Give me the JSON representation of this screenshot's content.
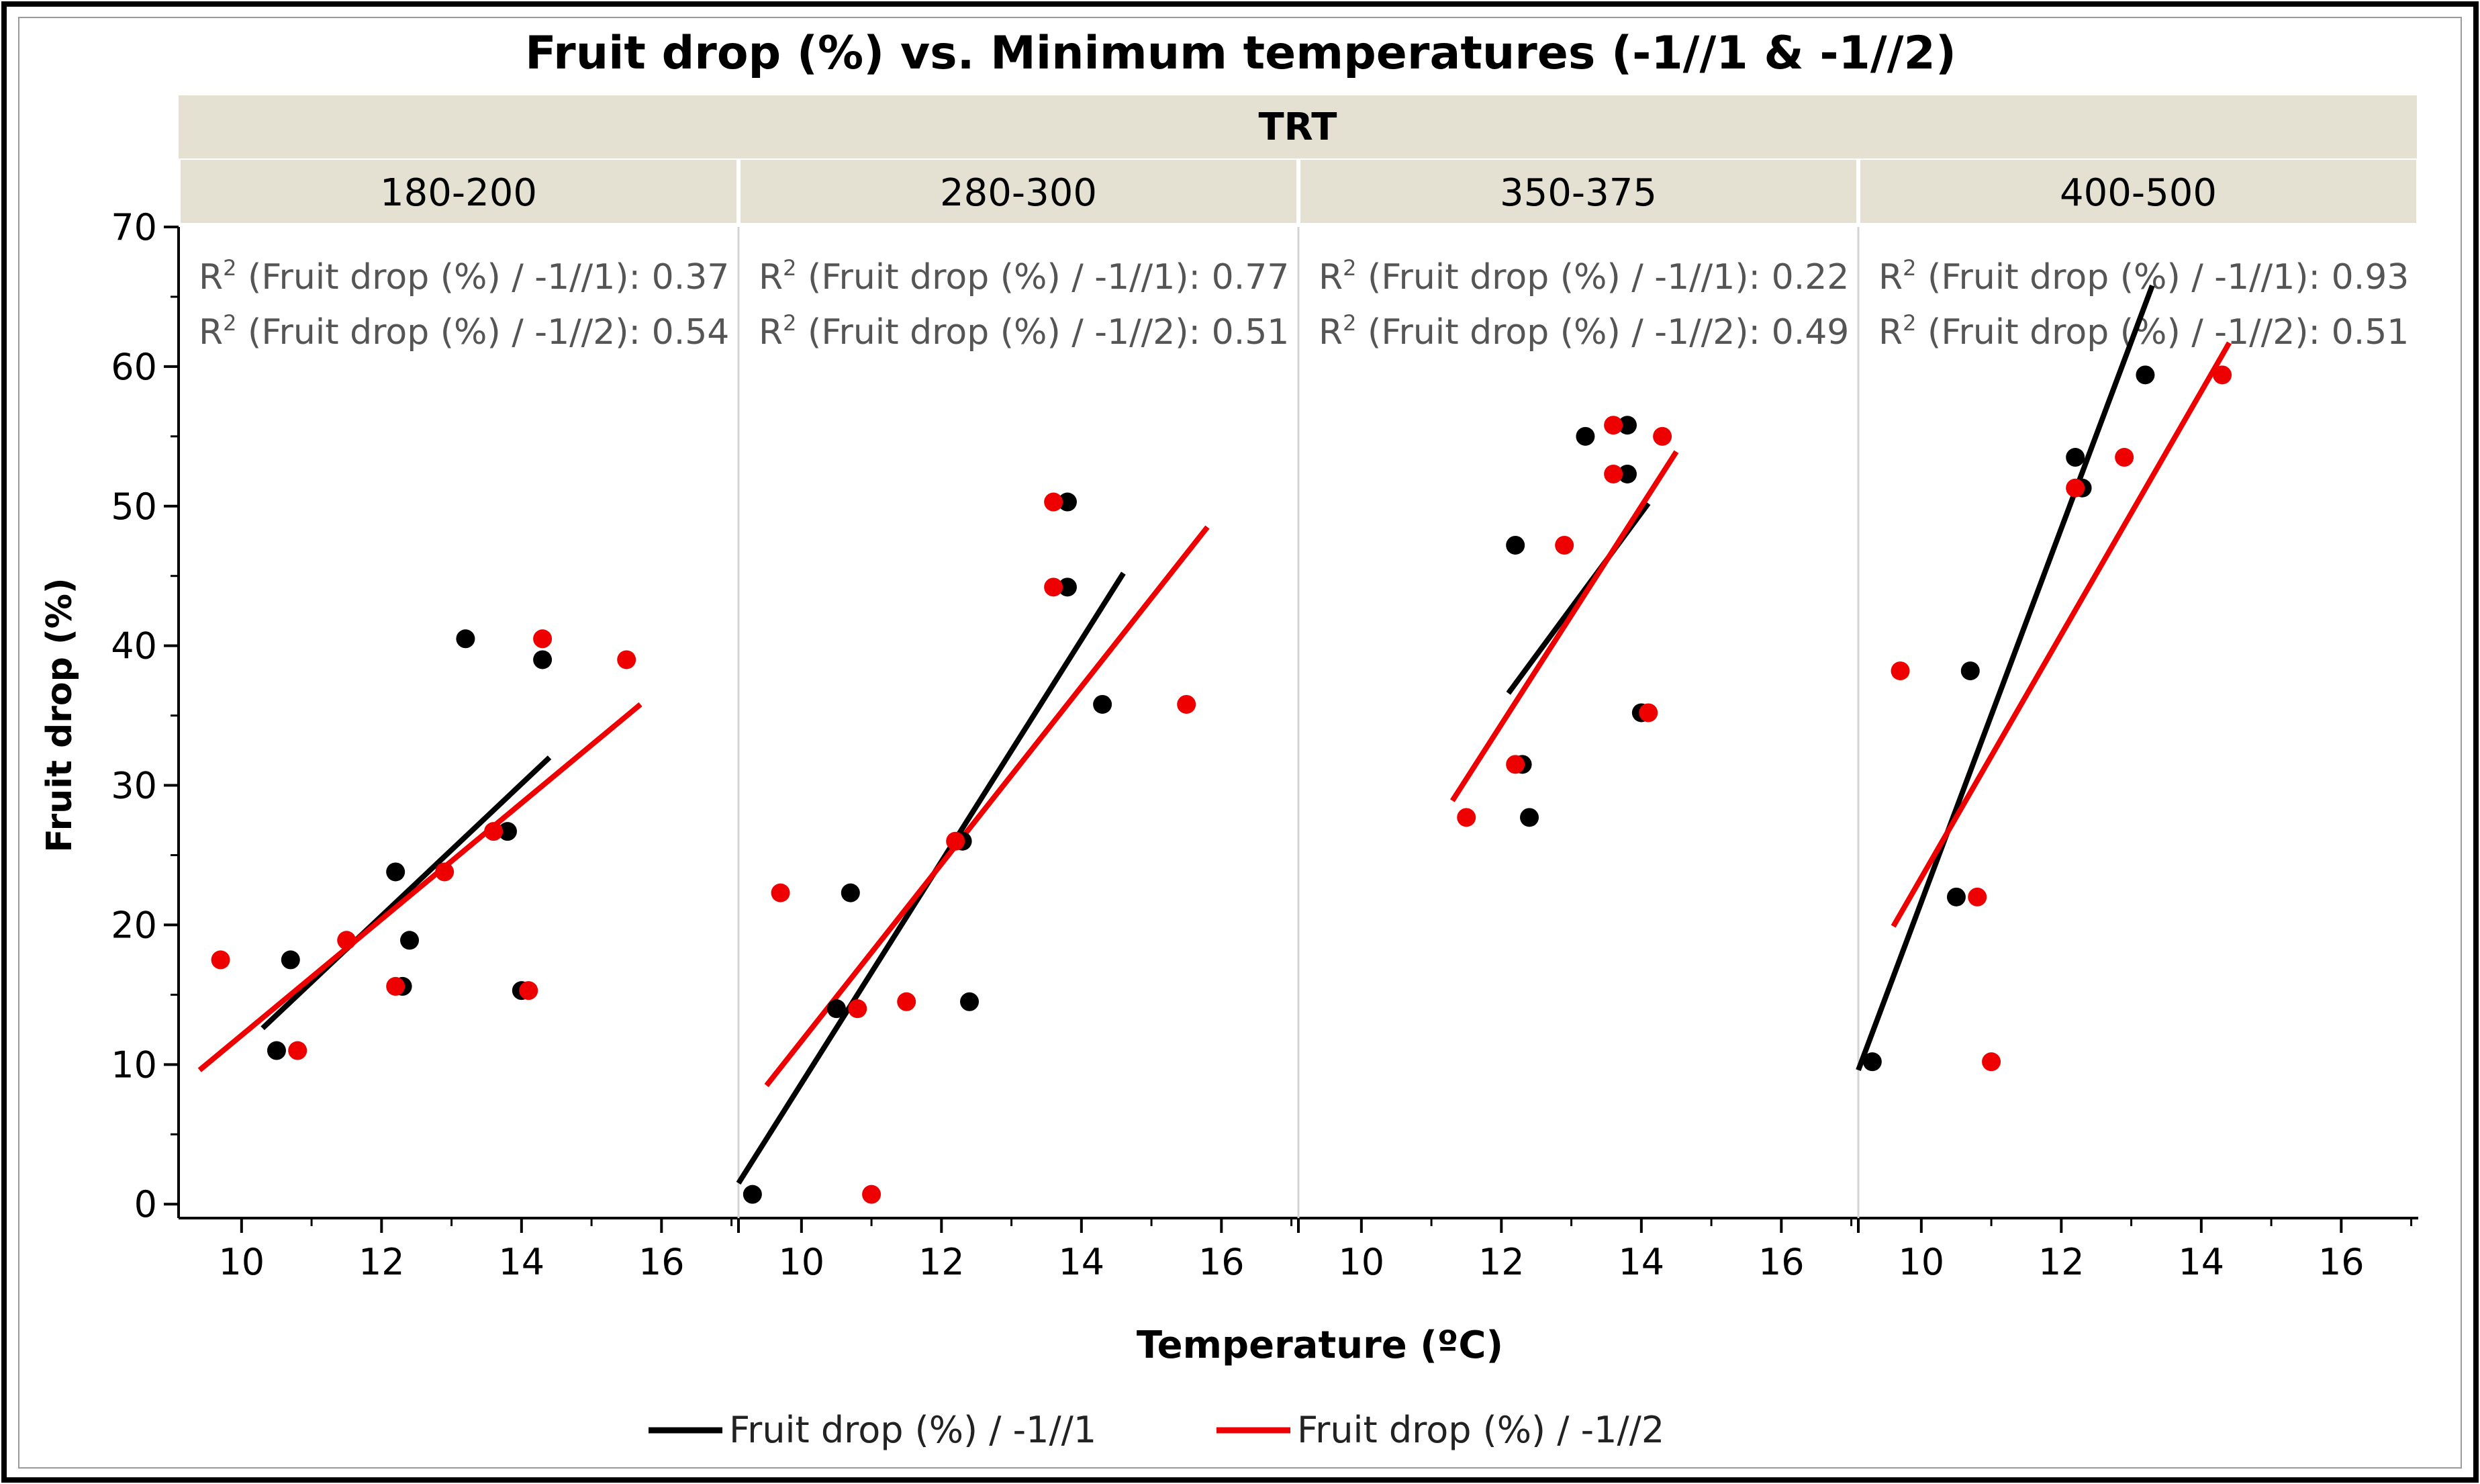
{
  "chart_data": {
    "type": "scatter",
    "title": "Fruit drop (%) vs. Minimum temperatures (-1//1 & -1//2)",
    "group_header": "TRT",
    "xlabel": "Temperature (ºC)",
    "ylabel": "Fruit drop (%)",
    "xlim": [
      9.1,
      17.1
    ],
    "ylim": [
      -1,
      70
    ],
    "xticks": [
      10,
      12,
      14,
      16
    ],
    "yticks": [
      0,
      10,
      20,
      30,
      40,
      50,
      60,
      70
    ],
    "colors": {
      "s1": "#000000",
      "s2": "#ee0000"
    },
    "legend": [
      {
        "key": "s1",
        "label": "Fruit drop (%) / -1//1"
      },
      {
        "key": "s2",
        "label": "Fruit drop (%) / -1//2"
      }
    ],
    "r2_label_s1": "(Fruit drop (%) / -1//1):",
    "r2_label_s2": "(Fruit drop (%) / -1//2):",
    "panels": [
      {
        "label": "180-200",
        "r2_s1": "0.37",
        "r2_s2": "0.54",
        "s1_points": [
          [
            10.5,
            11
          ],
          [
            10.7,
            17.5
          ],
          [
            12.2,
            23.8
          ],
          [
            12.3,
            15.6
          ],
          [
            12.4,
            18.9
          ],
          [
            13.2,
            40.5
          ],
          [
            13.8,
            26.7
          ],
          [
            14.0,
            15.3
          ],
          [
            14.3,
            39
          ]
        ],
        "s2_points": [
          [
            9.7,
            17.5
          ],
          [
            10.8,
            11
          ],
          [
            11.5,
            18.9
          ],
          [
            12.2,
            15.6
          ],
          [
            12.9,
            23.8
          ],
          [
            13.6,
            26.7
          ],
          [
            14.1,
            15.3
          ],
          [
            14.3,
            40.5
          ],
          [
            15.5,
            39
          ]
        ],
        "s1_line": [
          [
            10.3,
            12.6
          ],
          [
            14.4,
            32
          ]
        ],
        "s2_line": [
          [
            9.4,
            9.6
          ],
          [
            15.7,
            35.8
          ]
        ]
      },
      {
        "label": "280-300",
        "r2_s1": "0.77",
        "r2_s2": "0.51",
        "s1_points": [
          [
            9.3,
            0.7
          ],
          [
            10.5,
            14
          ],
          [
            10.7,
            22.3
          ],
          [
            12.3,
            26
          ],
          [
            12.4,
            14.5
          ],
          [
            13.8,
            50.3
          ],
          [
            13.8,
            44.2
          ],
          [
            14.3,
            35.8
          ]
        ],
        "s2_points": [
          [
            9.7,
            22.3
          ],
          [
            10.8,
            14
          ],
          [
            11.0,
            0.7
          ],
          [
            11.5,
            14.5
          ],
          [
            12.2,
            26
          ],
          [
            13.6,
            50.3
          ],
          [
            13.6,
            44.2
          ],
          [
            15.5,
            35.8
          ]
        ],
        "s1_line": [
          [
            9.1,
            1.5
          ],
          [
            14.6,
            45.2
          ]
        ],
        "s2_line": [
          [
            9.5,
            8.5
          ],
          [
            15.8,
            48.5
          ]
        ]
      },
      {
        "label": "350-375",
        "r2_s1": "0.22",
        "r2_s2": "0.49",
        "s1_points": [
          [
            12.2,
            47.2
          ],
          [
            12.3,
            31.5
          ],
          [
            12.4,
            27.7
          ],
          [
            13.2,
            55
          ],
          [
            13.8,
            55.8
          ],
          [
            13.8,
            52.3
          ],
          [
            14.0,
            35.2
          ]
        ],
        "s2_points": [
          [
            11.5,
            27.7
          ],
          [
            12.2,
            31.5
          ],
          [
            12.9,
            47.2
          ],
          [
            13.6,
            55.8
          ],
          [
            13.6,
            52.3
          ],
          [
            14.1,
            35.2
          ],
          [
            14.3,
            55
          ]
        ],
        "s1_line": [
          [
            12.1,
            36.6
          ],
          [
            14.1,
            50.2
          ]
        ],
        "s2_line": [
          [
            11.3,
            28.9
          ],
          [
            14.5,
            53.9
          ]
        ]
      },
      {
        "label": "400-500",
        "r2_s1": "0.93",
        "r2_s2": "0.51",
        "s1_points": [
          [
            9.3,
            10.2
          ],
          [
            10.5,
            22
          ],
          [
            10.7,
            38.2
          ],
          [
            12.2,
            53.5
          ],
          [
            12.3,
            51.3
          ],
          [
            13.2,
            59.4
          ]
        ],
        "s2_points": [
          [
            9.7,
            38.2
          ],
          [
            10.8,
            22
          ],
          [
            11.0,
            10.2
          ],
          [
            12.2,
            51.3
          ],
          [
            12.9,
            53.5
          ],
          [
            14.3,
            59.4
          ]
        ],
        "s1_line": [
          [
            9.1,
            9.6
          ],
          [
            13.3,
            65.8
          ]
        ],
        "s2_line": [
          [
            9.6,
            19.9
          ],
          [
            14.4,
            61.7
          ]
        ]
      }
    ]
  }
}
